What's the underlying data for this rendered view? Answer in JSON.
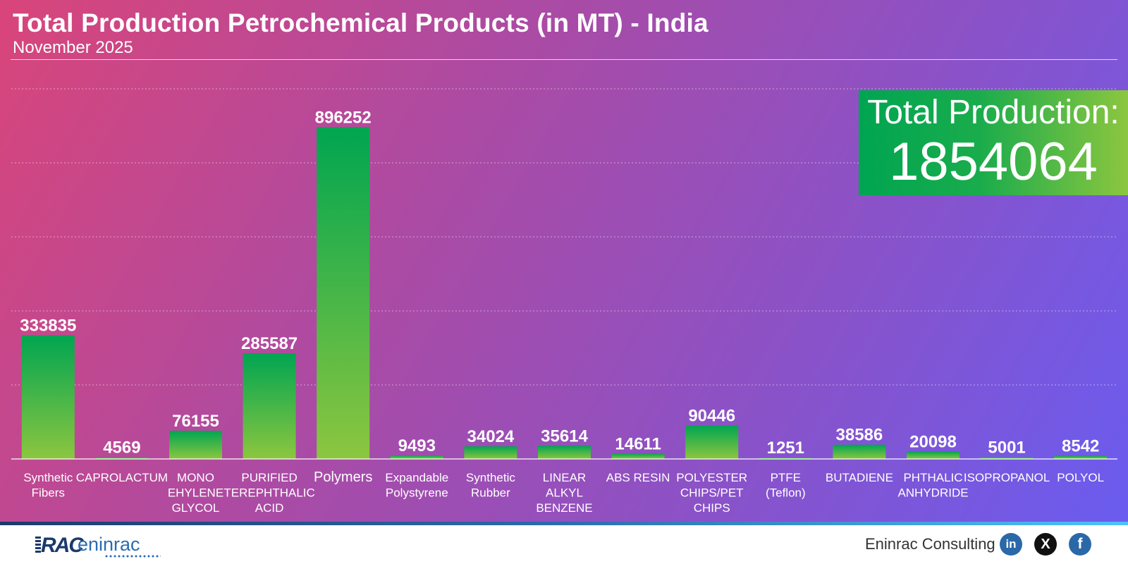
{
  "header": {
    "title": "Total Production Petrochemical Products (in MT) - India",
    "subtitle": "November 2025"
  },
  "total": {
    "label": "Total Production:",
    "value": "1854064"
  },
  "colors": {
    "bar_top": "#00a551",
    "bar_bottom": "#8cc63f",
    "background_start": "#d9457a",
    "background_end": "#6a5cf0"
  },
  "chart_data": {
    "type": "bar",
    "title": "Total Production Petrochemical Products (in MT) - India",
    "subtitle": "November 2025",
    "xlabel": "",
    "ylabel": "",
    "ylim": [
      0,
      1000000
    ],
    "grid": true,
    "categories": [
      "Synthetic Fibers",
      "CAPROLACTUM",
      "MONO EHYLENE GLYCOL",
      "PURIFIED TEREPHTHALIC ACID",
      "Polymers",
      "Expandable Polystyrene",
      "Synthetic Rubber",
      "LINEAR ALKYL BENZENE",
      "ABS RESIN",
      "POLYESTER CHIPS/PET CHIPS",
      "PTFE (Teflon)",
      "BUTADIENE",
      "PHTHALIC ANHYDRIDE",
      "ISOPROPANOL",
      "POLYOL"
    ],
    "category_lines": [
      [
        "Synthetic",
        "Fibers"
      ],
      [
        "CAPROLACTUM"
      ],
      [
        "MONO",
        "EHYLENE",
        "GLYCOL"
      ],
      [
        "PURIFIED",
        "TEREPHTHALIC",
        "ACID"
      ],
      [
        "Polymers"
      ],
      [
        "Expandable",
        "Polystyrene"
      ],
      [
        "Synthetic",
        "Rubber"
      ],
      [
        "LINEAR",
        "ALKYL",
        "BENZENE"
      ],
      [
        "ABS RESIN"
      ],
      [
        "POLYESTER",
        "CHIPS/PET",
        "CHIPS"
      ],
      [
        "PTFE",
        "(Teflon)"
      ],
      [
        "BUTADIENE"
      ],
      [
        "PHTHALIC",
        "ANHYDRIDE"
      ],
      [
        "ISOPROPANOL"
      ],
      [
        "POLYOL"
      ]
    ],
    "values": [
      333835,
      4569,
      76155,
      285587,
      896252,
      9493,
      34024,
      35614,
      14611,
      90446,
      1251,
      38586,
      20098,
      5001,
      8542
    ]
  },
  "footer": {
    "logo_mark": "RAC",
    "logo_word": "eninrac",
    "brand": "Eninrac Consulting",
    "social": [
      {
        "name": "linkedin-icon",
        "glyph": "in"
      },
      {
        "name": "x-icon",
        "glyph": "X"
      },
      {
        "name": "facebook-icon",
        "glyph": "f"
      }
    ]
  }
}
